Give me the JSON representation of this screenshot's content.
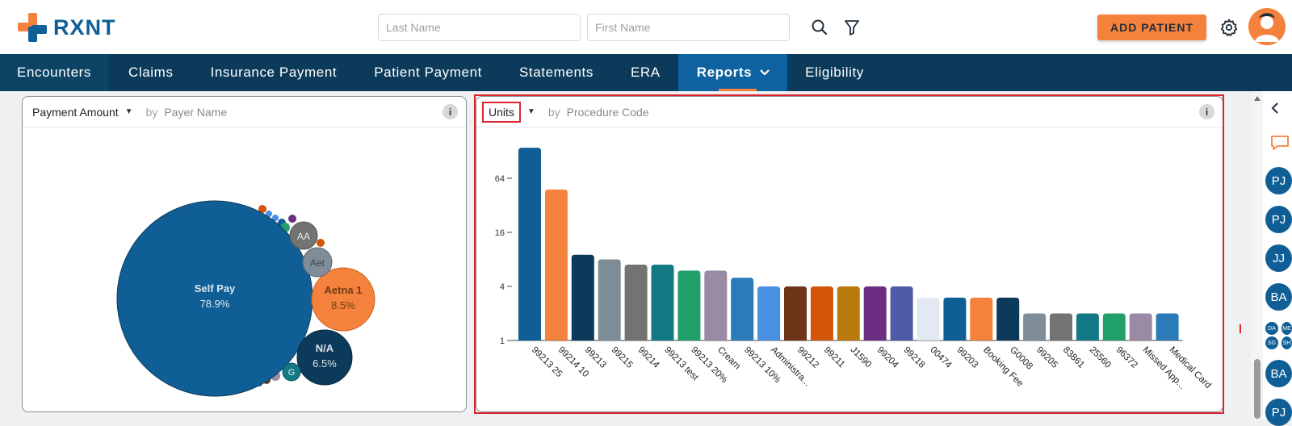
{
  "brand": {
    "name": "RXNT"
  },
  "search": {
    "last_name_placeholder": "Last Name",
    "first_name_placeholder": "First Name"
  },
  "header": {
    "add_patient_label": "ADD PATIENT"
  },
  "nav": {
    "items": [
      {
        "label": "Encounters"
      },
      {
        "label": "Claims"
      },
      {
        "label": "Insurance Payment"
      },
      {
        "label": "Patient Payment"
      },
      {
        "label": "Statements"
      },
      {
        "label": "ERA"
      },
      {
        "label": "Reports",
        "active": true
      },
      {
        "label": "Eligibility"
      }
    ]
  },
  "panel_payer": {
    "metric": "Payment Amount",
    "by": "by",
    "dimension": "Payer Name",
    "info": "i"
  },
  "panel_units": {
    "metric": "Units",
    "by": "by",
    "dimension": "Procedure Code",
    "info": "i"
  },
  "rail": {
    "buttons": [
      "PJ",
      "PJ",
      "JJ",
      "BA",
      "DA",
      "ME",
      "SG",
      "SH",
      "BA",
      "PJ"
    ]
  },
  "colors": {
    "brand_blue": "#0f5f96",
    "brand_orange": "#f5823c",
    "nav_bg": "#0c3a5a",
    "highlight_red": "#e0242e"
  },
  "chart_data": [
    {
      "type": "bubble",
      "title": "Payment Amount by Payer Name",
      "bubbles": [
        {
          "label": "Self Pay",
          "percent": "78.9%",
          "value": 78.9,
          "color": "#0f5f96"
        },
        {
          "label": "Aetna 1",
          "percent": "8.5%",
          "value": 8.5,
          "color": "#f5823c"
        },
        {
          "label": "N/A",
          "percent": "6.5%",
          "value": 6.5,
          "color": "#0c3a5a"
        },
        {
          "label": "AA",
          "percent": "",
          "value": 1.4,
          "color": "#737373"
        },
        {
          "label": "Aet",
          "percent": "",
          "value": 1.6,
          "color": "#7e8d98"
        },
        {
          "label": "G",
          "percent": "",
          "value": 0.6,
          "color": "#137a85"
        }
      ]
    },
    {
      "type": "bar",
      "title": "Units by Procedure Code",
      "yscale": "log2",
      "ytick_labels": [
        "1",
        "4",
        "16",
        "64"
      ],
      "ylim": [
        1,
        150
      ],
      "categories": [
        "99213 25",
        "99214 10",
        "99213",
        "99215",
        "99214",
        "99213 test",
        "99213 20%",
        "Cream",
        "99213 10%",
        "Administra...",
        "99212",
        "99211",
        "J1590",
        "99204",
        "99218",
        "00474",
        "99203",
        "Booking Fee",
        "G0008",
        "99205",
        "83861",
        "25560",
        "96372",
        "Missed App...",
        "Medical Card"
      ],
      "values": [
        140,
        48,
        9,
        8,
        7,
        7,
        6,
        6,
        5,
        4,
        4,
        4,
        4,
        4,
        4,
        3,
        3,
        3,
        3,
        2,
        2,
        2,
        2,
        2,
        2
      ],
      "colors": [
        "#0f5f96",
        "#f5823c",
        "#0c3a5a",
        "#7e8d98",
        "#737373",
        "#137a85",
        "#22a06b",
        "#9b8aa5",
        "#2a7bb8",
        "#4a90e2",
        "#6e3518",
        "#d2550a",
        "#b97b0e",
        "#6b2e82",
        "#4f5aa8",
        "#e3e9f1",
        "#0f5f96",
        "#f5823c",
        "#0c3a5a",
        "#7e8d98",
        "#737373",
        "#137a85",
        "#22a06b",
        "#9b8aa5",
        "#2a7bb8"
      ]
    }
  ]
}
